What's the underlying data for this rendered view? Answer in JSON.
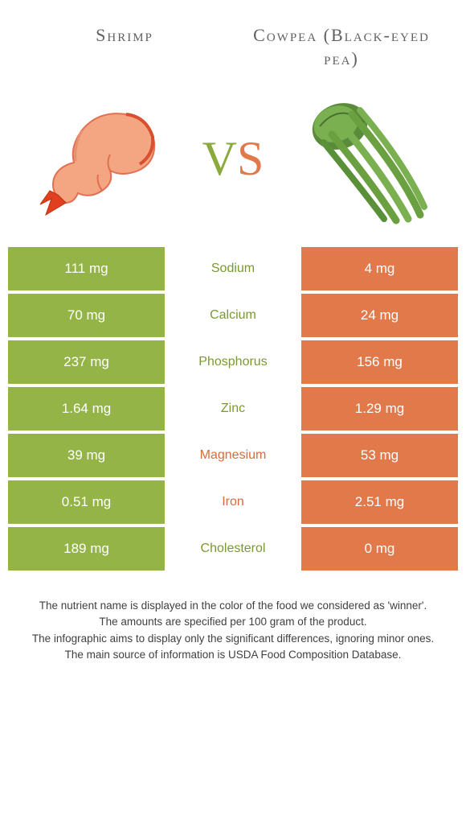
{
  "colors": {
    "green": "#94b447",
    "orange": "#e2794b",
    "green_text": "#7a9a2e",
    "orange_text": "#d86a3c"
  },
  "header": {
    "left": "Shrimp",
    "right": "Cowpea (Black-eyed pea)",
    "vs_v": "V",
    "vs_s": "S"
  },
  "rows": [
    {
      "nutrient": "Sodium",
      "left": "111 mg",
      "right": "4 mg",
      "winner": "left"
    },
    {
      "nutrient": "Calcium",
      "left": "70 mg",
      "right": "24 mg",
      "winner": "left"
    },
    {
      "nutrient": "Phosphorus",
      "left": "237 mg",
      "right": "156 mg",
      "winner": "left"
    },
    {
      "nutrient": "Zinc",
      "left": "1.64 mg",
      "right": "1.29 mg",
      "winner": "left"
    },
    {
      "nutrient": "Magnesium",
      "left": "39 mg",
      "right": "53 mg",
      "winner": "right"
    },
    {
      "nutrient": "Iron",
      "left": "0.51 mg",
      "right": "2.51 mg",
      "winner": "right"
    },
    {
      "nutrient": "Cholesterol",
      "left": "189 mg",
      "right": "0 mg",
      "winner": "left"
    }
  ],
  "footer": {
    "l1": "The nutrient name is displayed in the color of the food we considered as 'winner'.",
    "l2": "The amounts are specified per 100 gram of the product.",
    "l3": "The infographic aims to display only the significant differences, ignoring minor ones.",
    "l4": "The main source of information is USDA Food Composition Database."
  }
}
